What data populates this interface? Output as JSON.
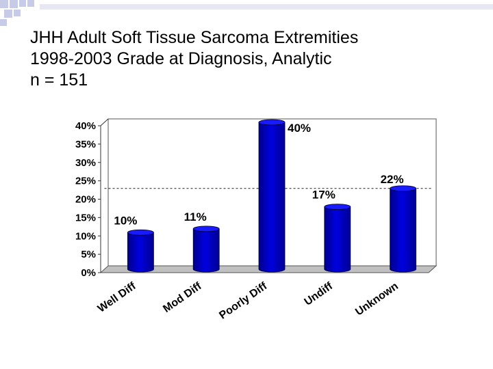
{
  "title_lines": [
    "JHH Adult Soft Tissue Sarcoma Extremities",
    "1998-2003 Grade at Diagnosis, Analytic",
    "n = 151"
  ],
  "chart_data": {
    "type": "bar",
    "categories": [
      "Well Diff",
      "Mod Diff",
      "Poorly Diff",
      "Undiff",
      "Unknown"
    ],
    "values": [
      10,
      11,
      40,
      17,
      22
    ],
    "data_labels": [
      "10%",
      "11%",
      "40%",
      "17%",
      "22%"
    ],
    "yticks": [
      "0%",
      "5%",
      "10%",
      "15%",
      "20%",
      "25%",
      "30%",
      "35%",
      "40%"
    ],
    "ylim": [
      0,
      40
    ],
    "reference_line": 22,
    "bar_color": "#0000cc",
    "grid": false,
    "legend": "none",
    "title": "",
    "xlabel": "",
    "ylabel": ""
  },
  "colors": {
    "accent": "#1e2a8a",
    "deco_square": "#c8cbe8"
  }
}
